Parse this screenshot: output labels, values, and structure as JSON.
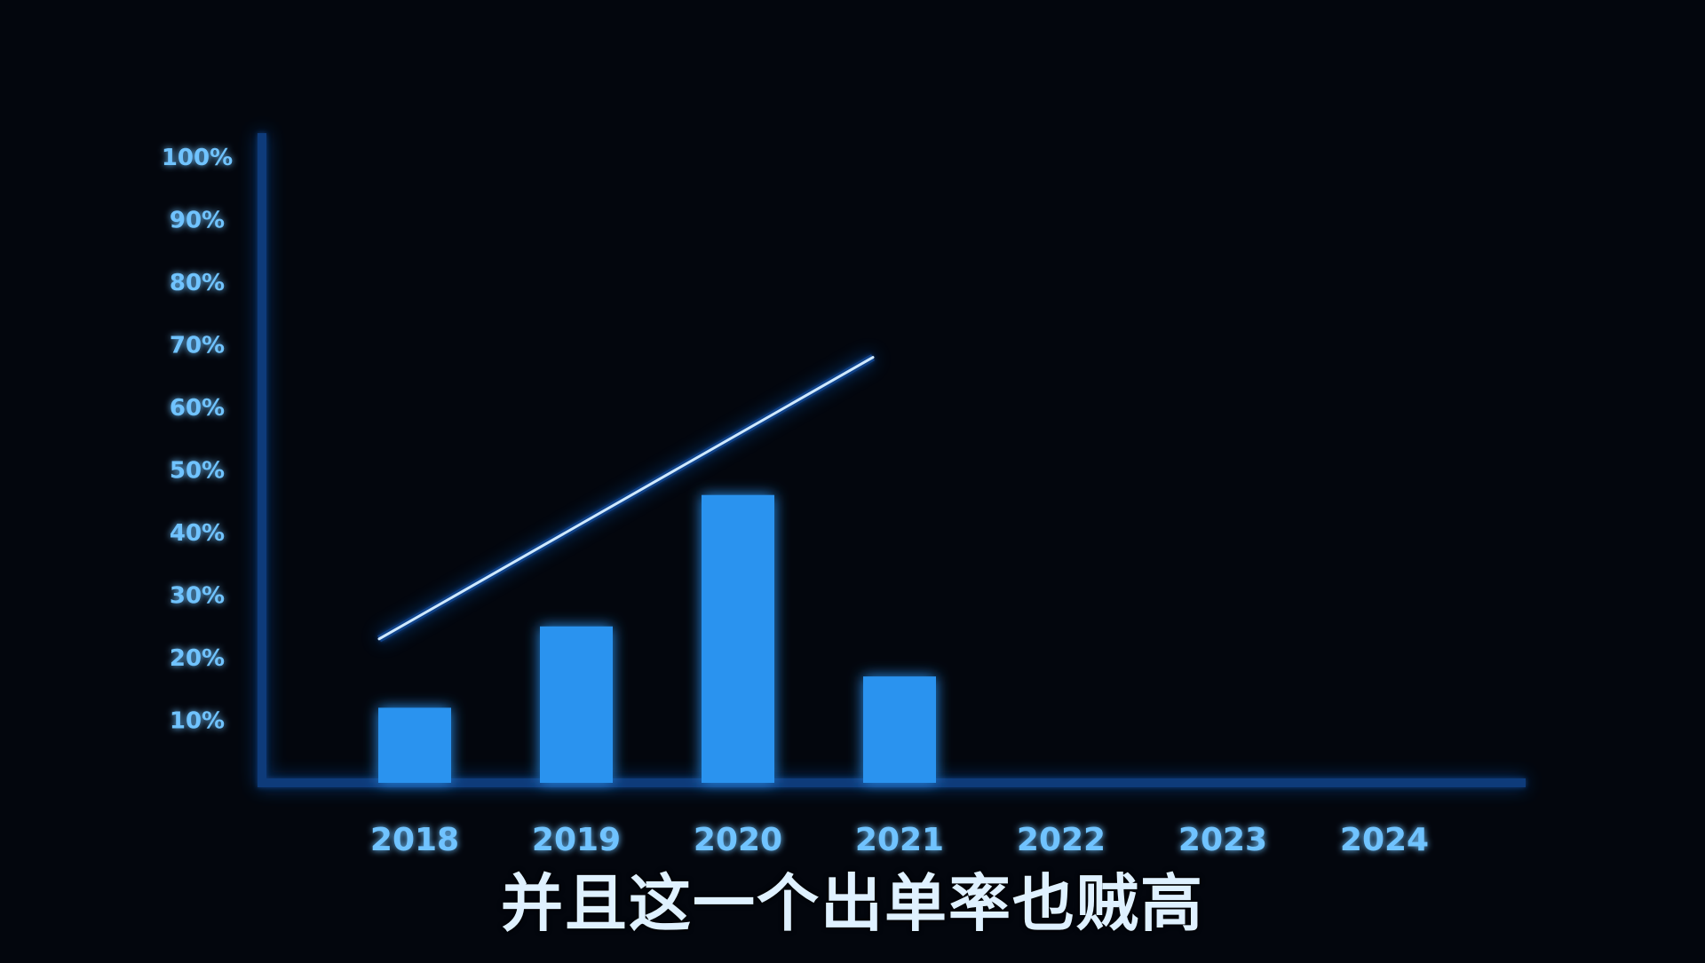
{
  "chart_data": {
    "type": "bar",
    "categories": [
      "2018",
      "2019",
      "2020",
      "2021",
      "2022",
      "2023",
      "2024"
    ],
    "values": [
      12,
      25,
      46,
      17,
      null,
      null,
      null
    ],
    "trend_line": {
      "x": [
        "2018",
        "2021"
      ],
      "y": [
        23,
        68
      ]
    },
    "yticks": [
      "10%",
      "20%",
      "30%",
      "40%",
      "50%",
      "60%",
      "70%",
      "80%",
      "90%",
      "100%"
    ],
    "ylim": [
      0,
      100
    ],
    "grid": false,
    "legend": "none"
  },
  "subtitle": "并且这一个出单率也贼高",
  "colors": {
    "background": "#03060d",
    "bar": "#2b93ef",
    "axis": "#8fd0ff",
    "glow": "#1f7bff",
    "tick_label": "#6fc3ff",
    "subtitle": "#dff1ff"
  }
}
